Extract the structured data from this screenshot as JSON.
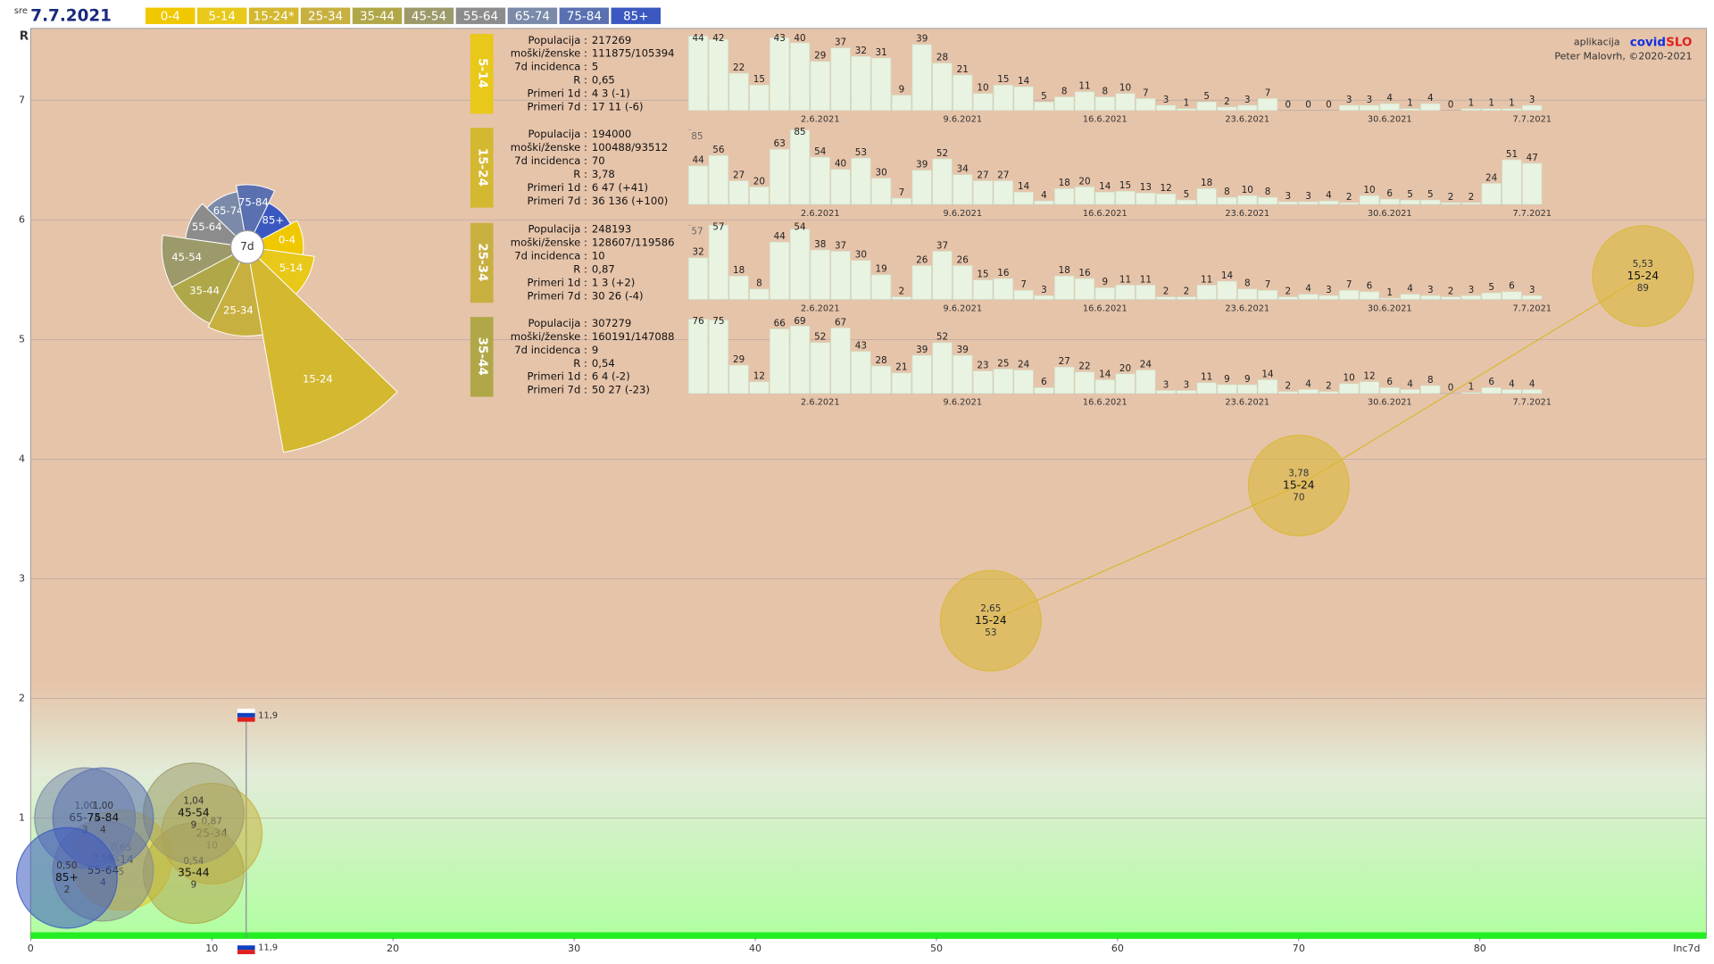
{
  "chart_data": [
    {
      "type": "bubble",
      "date_prefix": "sre",
      "title": "7.7.2021",
      "legend": [
        {
          "label": "0-4",
          "color": "#f0c800"
        },
        {
          "label": "5-14",
          "color": "#e8c818"
        },
        {
          "label": "15-24*",
          "color": "#d4b830"
        },
        {
          "label": "25-34",
          "color": "#c8b040"
        },
        {
          "label": "35-44",
          "color": "#b0a848"
        },
        {
          "label": "45-54",
          "color": "#9c9a6a"
        },
        {
          "label": "55-64",
          "color": "#8c8c8c"
        },
        {
          "label": "65-74",
          "color": "#7a8aa8"
        },
        {
          "label": "75-84",
          "color": "#5a70b0"
        },
        {
          "label": "85+",
          "color": "#3a58c0"
        }
      ],
      "credits": {
        "app_label": "aplikacija",
        "brand_a": "covid",
        "brand_b": "SLO",
        "author": "Peter Malovrh, ©2020-2021"
      },
      "xlabel": "Inc7d",
      "ylabel": "R",
      "xlim": [
        0,
        92.5
      ],
      "ylim": [
        0,
        7.6
      ],
      "xticks": [
        0,
        10,
        20,
        30,
        40,
        50,
        60,
        70,
        80
      ],
      "yticks": [
        1,
        2,
        3,
        4,
        5,
        6,
        7
      ],
      "grid": true,
      "reference": {
        "x": 11.9,
        "label": "11,9",
        "y": 1.86
      },
      "series": [
        {
          "name": "5-14",
          "color": "#e8c818",
          "x": [
            5
          ],
          "values": [
            0.65
          ],
          "value_labels": [
            "0,65"
          ]
        },
        {
          "name": "15-24",
          "color": "#d8b830",
          "x": [
            53,
            70,
            89
          ],
          "values": [
            2.65,
            3.78,
            5.53
          ],
          "value_labels": [
            "2,65",
            "3,78",
            "5,53"
          ]
        },
        {
          "name": "25-34",
          "color": "#c8b040",
          "x": [
            10
          ],
          "values": [
            0.87
          ],
          "value_labels": [
            "0,87"
          ]
        },
        {
          "name": "35-44",
          "color": "#b0a848",
          "x": [
            9
          ],
          "values": [
            0.54
          ],
          "value_labels": [
            "0,54"
          ]
        },
        {
          "name": "45-54",
          "color": "#9c9a6a",
          "x": [
            9
          ],
          "values": [
            1.04
          ],
          "value_labels": [
            "1,04"
          ]
        },
        {
          "name": "55-64",
          "color": "#8c8c8c",
          "x": [
            4
          ],
          "values": [
            0.56
          ],
          "value_labels": [
            "0,56"
          ]
        },
        {
          "name": "65-74",
          "color": "#7a8aa8",
          "x": [
            3
          ],
          "values": [
            1.0
          ],
          "value_labels": [
            "1,00"
          ]
        },
        {
          "name": "75-84",
          "color": "#5a70b0",
          "x": [
            4
          ],
          "values": [
            1.0
          ],
          "value_labels": [
            "1,00"
          ]
        },
        {
          "name": "85+",
          "color": "#3a58c0",
          "x": [
            2
          ],
          "values": [
            0.5
          ],
          "value_labels": [
            "0,50"
          ]
        }
      ]
    },
    {
      "type": "polar",
      "title": "7d",
      "categories": [
        "0-4",
        "5-14",
        "15-24",
        "25-34",
        "35-44",
        "45-54",
        "55-64",
        "65-74",
        "75-84",
        "85+"
      ],
      "values": [
        3,
        5,
        70,
        10,
        9,
        9,
        4,
        3,
        4,
        2
      ],
      "colors": [
        "#f0c800",
        "#e8c818",
        "#d4b830",
        "#c8b040",
        "#b0a848",
        "#9c9a6a",
        "#8c8c8c",
        "#7a8aa8",
        "#5a70b0",
        "#3a58c0"
      ]
    },
    {
      "type": "bar",
      "title": "5-14",
      "color": "#e8c818",
      "bar_color": "#e8f3e2",
      "stats": {
        "labels": [
          "Populacija :",
          "moški/ženske :",
          "7d incidenca :",
          "R :",
          "Primeri 1d :",
          "Primeri 7d :"
        ],
        "values": [
          "217269",
          "111875/105394",
          "5",
          "0,65",
          "4 3 (-1)",
          "17 11 (-6)"
        ]
      },
      "categories": [
        null,
        null,
        null,
        null,
        null,
        null,
        "2.6.2021",
        null,
        null,
        null,
        null,
        null,
        null,
        "9.6.2021",
        null,
        null,
        null,
        null,
        null,
        null,
        "16.6.2021",
        null,
        null,
        null,
        null,
        null,
        null,
        "23.6.2021",
        null,
        null,
        null,
        null,
        null,
        null,
        "30.6.2021",
        null,
        null,
        null,
        null,
        null,
        null,
        "7.7.2021"
      ],
      "values": [
        44,
        42,
        22,
        15,
        43,
        40,
        29,
        37,
        32,
        31,
        9,
        39,
        28,
        21,
        10,
        15,
        14,
        5,
        8,
        11,
        8,
        10,
        7,
        3,
        1,
        5,
        2,
        3,
        7,
        0,
        0,
        0,
        3,
        3,
        4,
        1,
        4,
        0,
        1,
        1,
        1,
        3
      ],
      "ylim": [
        0,
        44
      ],
      "yticks": [
        44
      ]
    },
    {
      "type": "bar",
      "title": "15-24",
      "color": "#d4b830",
      "bar_color": "#e8f3e2",
      "stats": {
        "labels": [
          "Populacija :",
          "moški/ženske :",
          "7d incidenca :",
          "R :",
          "Primeri 1d :",
          "Primeri 7d :"
        ],
        "values": [
          "194000",
          "100488/93512",
          "70",
          "3,78",
          "6 47 (+41)",
          "36 136 (+100)"
        ]
      },
      "categories": [
        null,
        null,
        null,
        null,
        null,
        null,
        "2.6.2021",
        null,
        null,
        null,
        null,
        null,
        null,
        "9.6.2021",
        null,
        null,
        null,
        null,
        null,
        null,
        "16.6.2021",
        null,
        null,
        null,
        null,
        null,
        null,
        "23.6.2021",
        null,
        null,
        null,
        null,
        null,
        null,
        "30.6.2021",
        null,
        null,
        null,
        null,
        null,
        null,
        "7.7.2021"
      ],
      "values": [
        44,
        56,
        27,
        20,
        63,
        85,
        54,
        40,
        53,
        30,
        7,
        39,
        52,
        34,
        27,
        27,
        14,
        4,
        18,
        20,
        14,
        15,
        13,
        12,
        5,
        18,
        8,
        10,
        8,
        3,
        3,
        4,
        2,
        10,
        6,
        5,
        5,
        2,
        2,
        24,
        51,
        47
      ],
      "ylim": [
        0,
        85
      ],
      "yticks": [
        85
      ]
    },
    {
      "type": "bar",
      "title": "25-34",
      "color": "#c8b040",
      "bar_color": "#e8f3e2",
      "stats": {
        "labels": [
          "Populacija :",
          "moški/ženske :",
          "7d incidenca :",
          "R :",
          "Primeri 1d :",
          "Primeri 7d :"
        ],
        "values": [
          "248193",
          "128607/119586",
          "10",
          "0,87",
          "1 3 (+2)",
          "30 26 (-4)"
        ]
      },
      "categories": [
        null,
        null,
        null,
        null,
        null,
        null,
        "2.6.2021",
        null,
        null,
        null,
        null,
        null,
        null,
        "9.6.2021",
        null,
        null,
        null,
        null,
        null,
        null,
        "16.6.2021",
        null,
        null,
        null,
        null,
        null,
        null,
        "23.6.2021",
        null,
        null,
        null,
        null,
        null,
        null,
        "30.6.2021",
        null,
        null,
        null,
        null,
        null,
        null,
        "7.7.2021"
      ],
      "values": [
        32,
        57,
        18,
        8,
        44,
        54,
        38,
        37,
        30,
        19,
        2,
        26,
        37,
        26,
        15,
        16,
        7,
        3,
        18,
        16,
        9,
        11,
        11,
        2,
        2,
        11,
        14,
        8,
        7,
        2,
        4,
        3,
        7,
        6,
        1,
        4,
        3,
        2,
        3,
        5,
        6,
        3
      ],
      "ylim": [
        0,
        57
      ],
      "yticks": [
        57
      ]
    },
    {
      "type": "bar",
      "title": "35-44",
      "color": "#b0a848",
      "bar_color": "#e8f3e2",
      "stats": {
        "labels": [
          "Populacija :",
          "moški/ženske :",
          "7d incidenca :",
          "R :",
          "Primeri 1d :",
          "Primeri 7d :"
        ],
        "values": [
          "307279",
          "160191/147088",
          "9",
          "0,54",
          "6 4 (-2)",
          "50 27 (-23)"
        ]
      },
      "categories": [
        null,
        null,
        null,
        null,
        null,
        null,
        "2.6.2021",
        null,
        null,
        null,
        null,
        null,
        null,
        "9.6.2021",
        null,
        null,
        null,
        null,
        null,
        null,
        "16.6.2021",
        null,
        null,
        null,
        null,
        null,
        null,
        "23.6.2021",
        null,
        null,
        null,
        null,
        null,
        null,
        "30.6.2021",
        null,
        null,
        null,
        null,
        null,
        null,
        "7.7.2021"
      ],
      "values": [
        76,
        75,
        29,
        12,
        66,
        69,
        52,
        67,
        43,
        28,
        21,
        39,
        52,
        39,
        23,
        25,
        24,
        6,
        27,
        22,
        14,
        20,
        24,
        3,
        3,
        11,
        9,
        9,
        14,
        2,
        4,
        2,
        10,
        12,
        6,
        4,
        8,
        0,
        1,
        6,
        4,
        4
      ],
      "ylim": [
        0,
        76
      ],
      "yticks": [
        76
      ]
    }
  ]
}
